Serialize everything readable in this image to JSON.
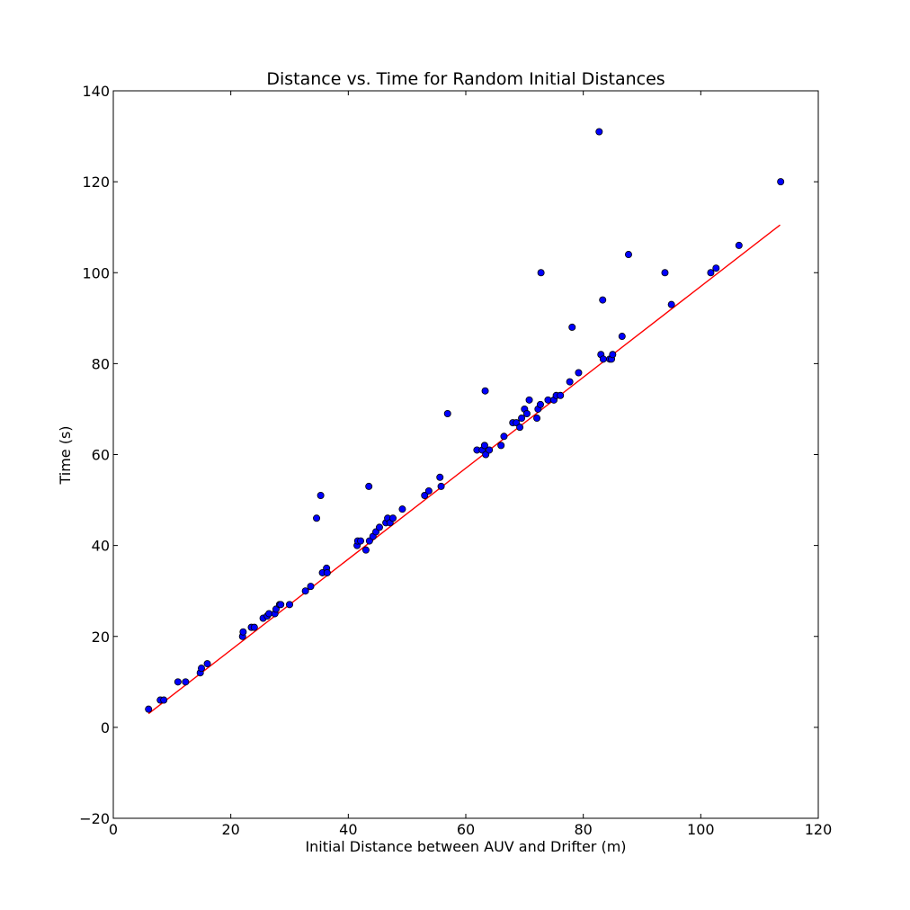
{
  "chart_data": {
    "type": "scatter",
    "title": "Distance vs. Time for Random Initial Distances",
    "xlabel": "Initial Distance between AUV and Drifter (m)",
    "ylabel": "Time (s)",
    "xlim": [
      0,
      120
    ],
    "ylim": [
      -20,
      140
    ],
    "xticks": [
      0,
      20,
      40,
      60,
      80,
      100,
      120
    ],
    "yticks": [
      -20,
      0,
      20,
      40,
      60,
      80,
      100,
      120,
      140
    ],
    "xtick_labels": [
      "0",
      "20",
      "40",
      "60",
      "80",
      "100",
      "120"
    ],
    "ytick_labels": [
      "−20",
      "0",
      "20",
      "40",
      "60",
      "80",
      "100",
      "120",
      "140"
    ],
    "grid": false,
    "series": [
      {
        "marker": "circle",
        "color": "#0000ff",
        "points": [
          [
            6,
            4
          ],
          [
            8,
            6
          ],
          [
            8.6,
            6
          ],
          [
            11,
            10
          ],
          [
            12.3,
            10
          ],
          [
            14.8,
            12
          ],
          [
            15,
            13
          ],
          [
            16,
            14
          ],
          [
            22,
            20
          ],
          [
            22.1,
            21
          ],
          [
            23.5,
            22
          ],
          [
            24,
            22
          ],
          [
            25.5,
            24
          ],
          [
            26.2,
            24.5
          ],
          [
            26.5,
            25
          ],
          [
            27.5,
            25
          ],
          [
            27.7,
            26
          ],
          [
            28.3,
            27
          ],
          [
            28.5,
            27
          ],
          [
            30,
            27
          ],
          [
            32.7,
            30
          ],
          [
            33.6,
            31
          ],
          [
            34.6,
            46
          ],
          [
            35.3,
            51
          ],
          [
            35.6,
            34
          ],
          [
            36.3,
            35
          ],
          [
            36.4,
            34
          ],
          [
            41.5,
            40
          ],
          [
            41.6,
            41
          ],
          [
            42.1,
            41
          ],
          [
            43,
            39
          ],
          [
            43.5,
            53
          ],
          [
            43.6,
            41
          ],
          [
            44.2,
            42
          ],
          [
            44.7,
            43
          ],
          [
            45.3,
            44
          ],
          [
            46.4,
            45
          ],
          [
            46.7,
            46
          ],
          [
            47.1,
            45
          ],
          [
            47.6,
            46
          ],
          [
            49.2,
            48
          ],
          [
            53,
            51
          ],
          [
            53.7,
            52
          ],
          [
            55.6,
            55
          ],
          [
            55.8,
            53
          ],
          [
            56.9,
            69
          ],
          [
            61.9,
            61
          ],
          [
            62.8,
            61
          ],
          [
            63.2,
            62
          ],
          [
            63.3,
            74
          ],
          [
            63.4,
            60
          ],
          [
            64,
            61
          ],
          [
            66,
            62
          ],
          [
            66.5,
            64
          ],
          [
            68,
            67
          ],
          [
            68.6,
            67
          ],
          [
            69.2,
            66
          ],
          [
            69.5,
            68
          ],
          [
            70,
            70
          ],
          [
            70.4,
            69
          ],
          [
            70.8,
            72
          ],
          [
            72.1,
            68
          ],
          [
            72.3,
            70
          ],
          [
            72.7,
            71
          ],
          [
            72.8,
            100
          ],
          [
            74,
            72
          ],
          [
            75,
            72
          ],
          [
            75.4,
            73
          ],
          [
            76.1,
            73
          ],
          [
            77.7,
            76
          ],
          [
            78.1,
            88
          ],
          [
            79.2,
            78
          ],
          [
            82.7,
            131
          ],
          [
            83,
            82
          ],
          [
            83.3,
            94
          ],
          [
            83.4,
            81
          ],
          [
            84.5,
            81
          ],
          [
            84.8,
            81
          ],
          [
            85,
            82
          ],
          [
            86.6,
            86
          ],
          [
            87.7,
            104
          ],
          [
            93.9,
            100
          ],
          [
            95,
            93
          ],
          [
            101.7,
            100
          ],
          [
            102.6,
            101
          ],
          [
            106.5,
            106
          ],
          [
            113.6,
            120
          ]
        ]
      }
    ],
    "fit_line": {
      "color": "#ff0000",
      "points": [
        [
          6,
          3
        ],
        [
          113.5,
          110.5
        ]
      ]
    }
  }
}
